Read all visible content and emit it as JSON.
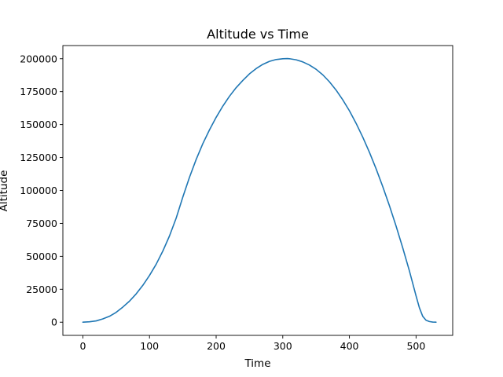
{
  "chart_data": {
    "type": "line",
    "title": "Altitude vs Time",
    "xlabel": "Time",
    "ylabel": "Altitude",
    "xlim": [
      -30,
      555
    ],
    "ylim": [
      -10000,
      210000
    ],
    "xticks": [
      0,
      100,
      200,
      300,
      400,
      500
    ],
    "yticks": [
      0,
      25000,
      50000,
      75000,
      100000,
      125000,
      150000,
      175000,
      200000
    ],
    "grid": false,
    "legend": "none",
    "series": [
      {
        "color": "#1f77b4",
        "x": [
          0,
          10,
          20,
          30,
          40,
          50,
          60,
          70,
          80,
          90,
          100,
          110,
          120,
          130,
          140,
          150,
          160,
          170,
          180,
          190,
          200,
          210,
          220,
          230,
          240,
          250,
          260,
          270,
          280,
          290,
          300,
          307,
          310,
          320,
          330,
          340,
          350,
          360,
          370,
          380,
          390,
          400,
          410,
          420,
          430,
          440,
          450,
          460,
          470,
          480,
          490,
          500,
          505,
          510,
          515,
          520,
          525,
          530
        ],
        "y": [
          0,
          300,
          1000,
          2500,
          4500,
          7500,
          11500,
          16000,
          21500,
          28000,
          35500,
          44000,
          54000,
          65500,
          79000,
          95000,
          110000,
          123500,
          135500,
          146000,
          155500,
          164000,
          171500,
          178000,
          183500,
          188500,
          192500,
          195700,
          198000,
          199400,
          200000,
          200100,
          200000,
          199200,
          197600,
          195200,
          192000,
          187800,
          182500,
          176200,
          168800,
          160500,
          151000,
          140500,
          129000,
          116500,
          103000,
          88500,
          73000,
          56500,
          39000,
          20000,
          11000,
          4500,
          1500,
          500,
          100,
          0
        ]
      }
    ]
  }
}
